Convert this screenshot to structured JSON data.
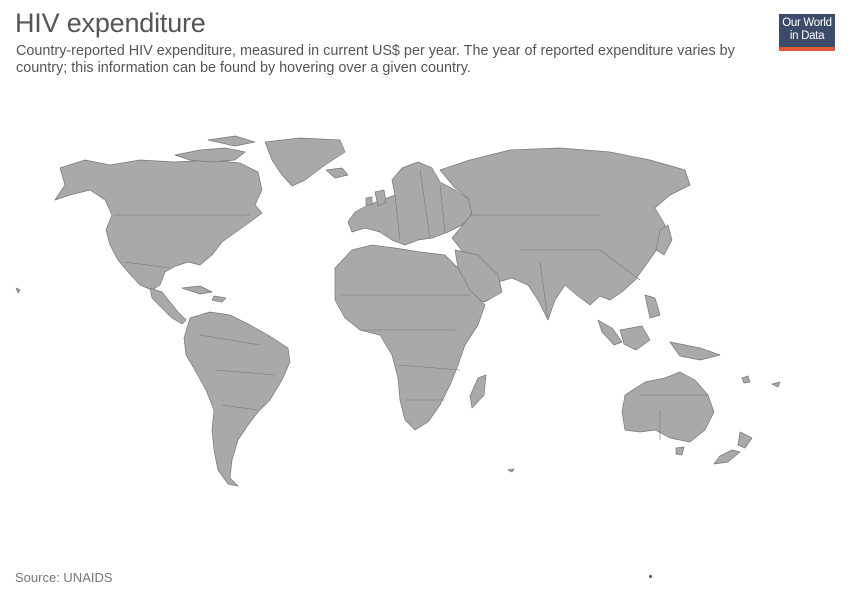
{
  "header": {
    "title": "HIV expenditure",
    "subtitle": "Country-reported HIV expenditure, measured in current US$ per year. The year of reported expenditure varies by country; this information can be found by hovering over a given country."
  },
  "logo": {
    "line1": "Our World",
    "line2": "in Data"
  },
  "footer": {
    "source": "Source: UNAIDS"
  },
  "map": {
    "land_color": "#a9a9a9",
    "border_color": "#777777"
  },
  "colors": {
    "text": "#555555",
    "logo_bg": "#3d4b6b",
    "logo_accent": "#e0573b"
  }
}
